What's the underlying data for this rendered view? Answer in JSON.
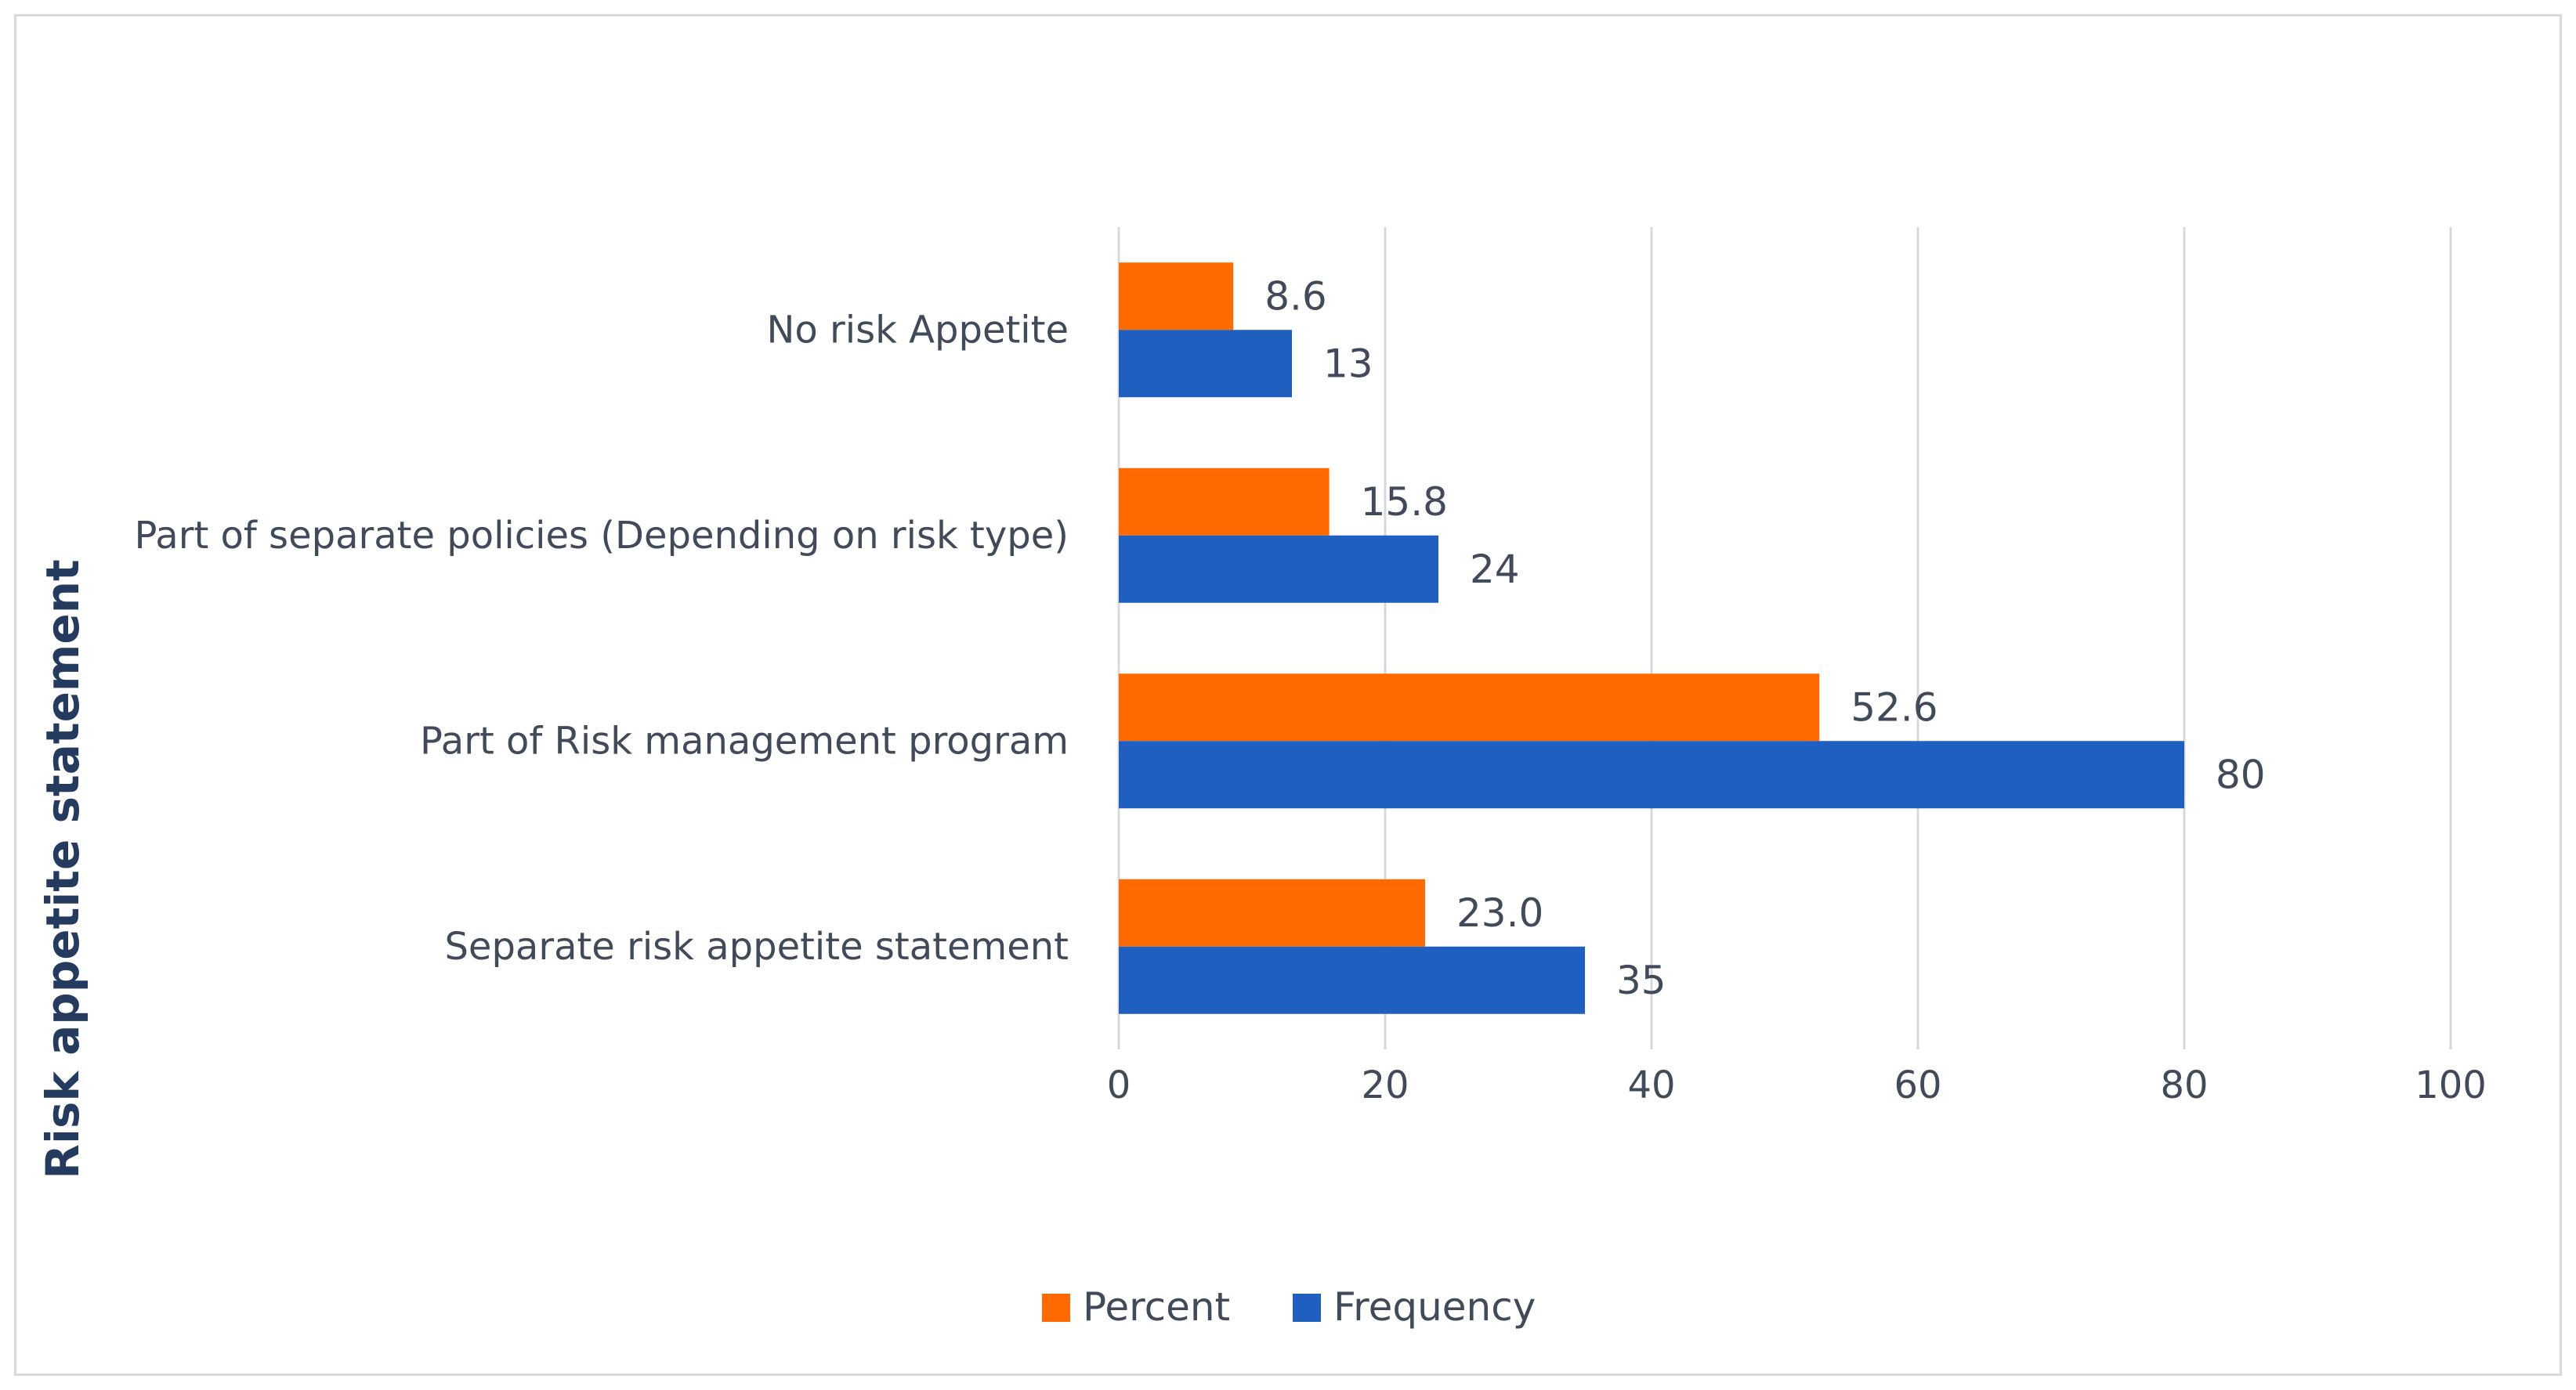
{
  "chart_data": {
    "type": "bar",
    "orientation": "horizontal",
    "title": "",
    "xlabel": "",
    "ylabel": "Risk appetite statement",
    "categories": [
      "Separate risk appetite statement",
      "Part of Risk management program",
      "Part of separate policies (Depending on risk type)",
      "No risk Appetite"
    ],
    "series": [
      {
        "name": "Frequency",
        "color": "#1f5fbf",
        "values": [
          35,
          80,
          24,
          13
        ],
        "labels": [
          "35",
          "80",
          "24",
          "13"
        ]
      },
      {
        "name": "Percent",
        "color": "#ff6a00",
        "values": [
          23.0,
          52.6,
          15.8,
          8.6
        ],
        "labels": [
          "23.0",
          "52.6",
          "15.8",
          "8.6"
        ]
      }
    ],
    "xlim": [
      0,
      100
    ],
    "xticks": [
      "0",
      "20",
      "40",
      "60",
      "80",
      "100"
    ],
    "grid": "vertical",
    "legend": {
      "placement": "bottom",
      "order": [
        "Percent",
        "Frequency"
      ]
    }
  }
}
